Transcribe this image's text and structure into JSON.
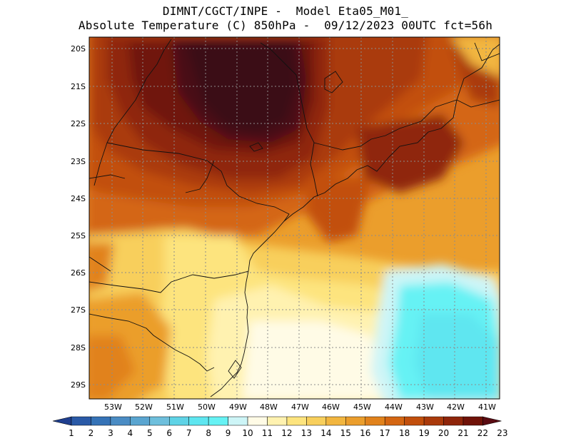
{
  "header": {
    "line1": "DIMNT/CGCT/INPE -  Model Eta05_M01_",
    "line2": "Absolute Temperature (C) 850hPa -  09/12/2023 00UTC fct=56h"
  },
  "axes": {
    "lat_labels": [
      "20S",
      "21S",
      "22S",
      "23S",
      "24S",
      "25S",
      "26S",
      "27S",
      "28S",
      "29S"
    ],
    "lon_labels": [
      "53W",
      "52W",
      "51W",
      "50W",
      "49W",
      "48W",
      "47W",
      "46W",
      "45W",
      "44W",
      "43W",
      "42W",
      "41W"
    ]
  },
  "colorbar": {
    "labels": [
      "1",
      "2",
      "3",
      "4",
      "5",
      "6",
      "7",
      "8",
      "9",
      "10",
      "11",
      "12",
      "13",
      "14",
      "15",
      "16",
      "17",
      "18",
      "19",
      "20",
      "21",
      "22",
      "23"
    ],
    "colors": [
      "#1f3f8f",
      "#2a5aa7",
      "#3573b7",
      "#4a8cc4",
      "#5aa5d0",
      "#6ebfdc",
      "#5fd3e6",
      "#5ee6f0",
      "#66f2f4",
      "#cdf5f7",
      "#fffbe6",
      "#fff2b0",
      "#fde47e",
      "#f8cf5c",
      "#f2b63f",
      "#eb9e2c",
      "#e1821c",
      "#d46612",
      "#c24f0c",
      "#aa3a0b",
      "#8f250a",
      "#701208",
      "#5a0b12"
    ]
  },
  "map": {
    "field_description_colors": {
      "warm_core": "#3a0e14",
      "hot": "#701208",
      "orange": "#d46612",
      "yellow": "#fde47e",
      "cool": "#5ee6f0"
    }
  }
}
